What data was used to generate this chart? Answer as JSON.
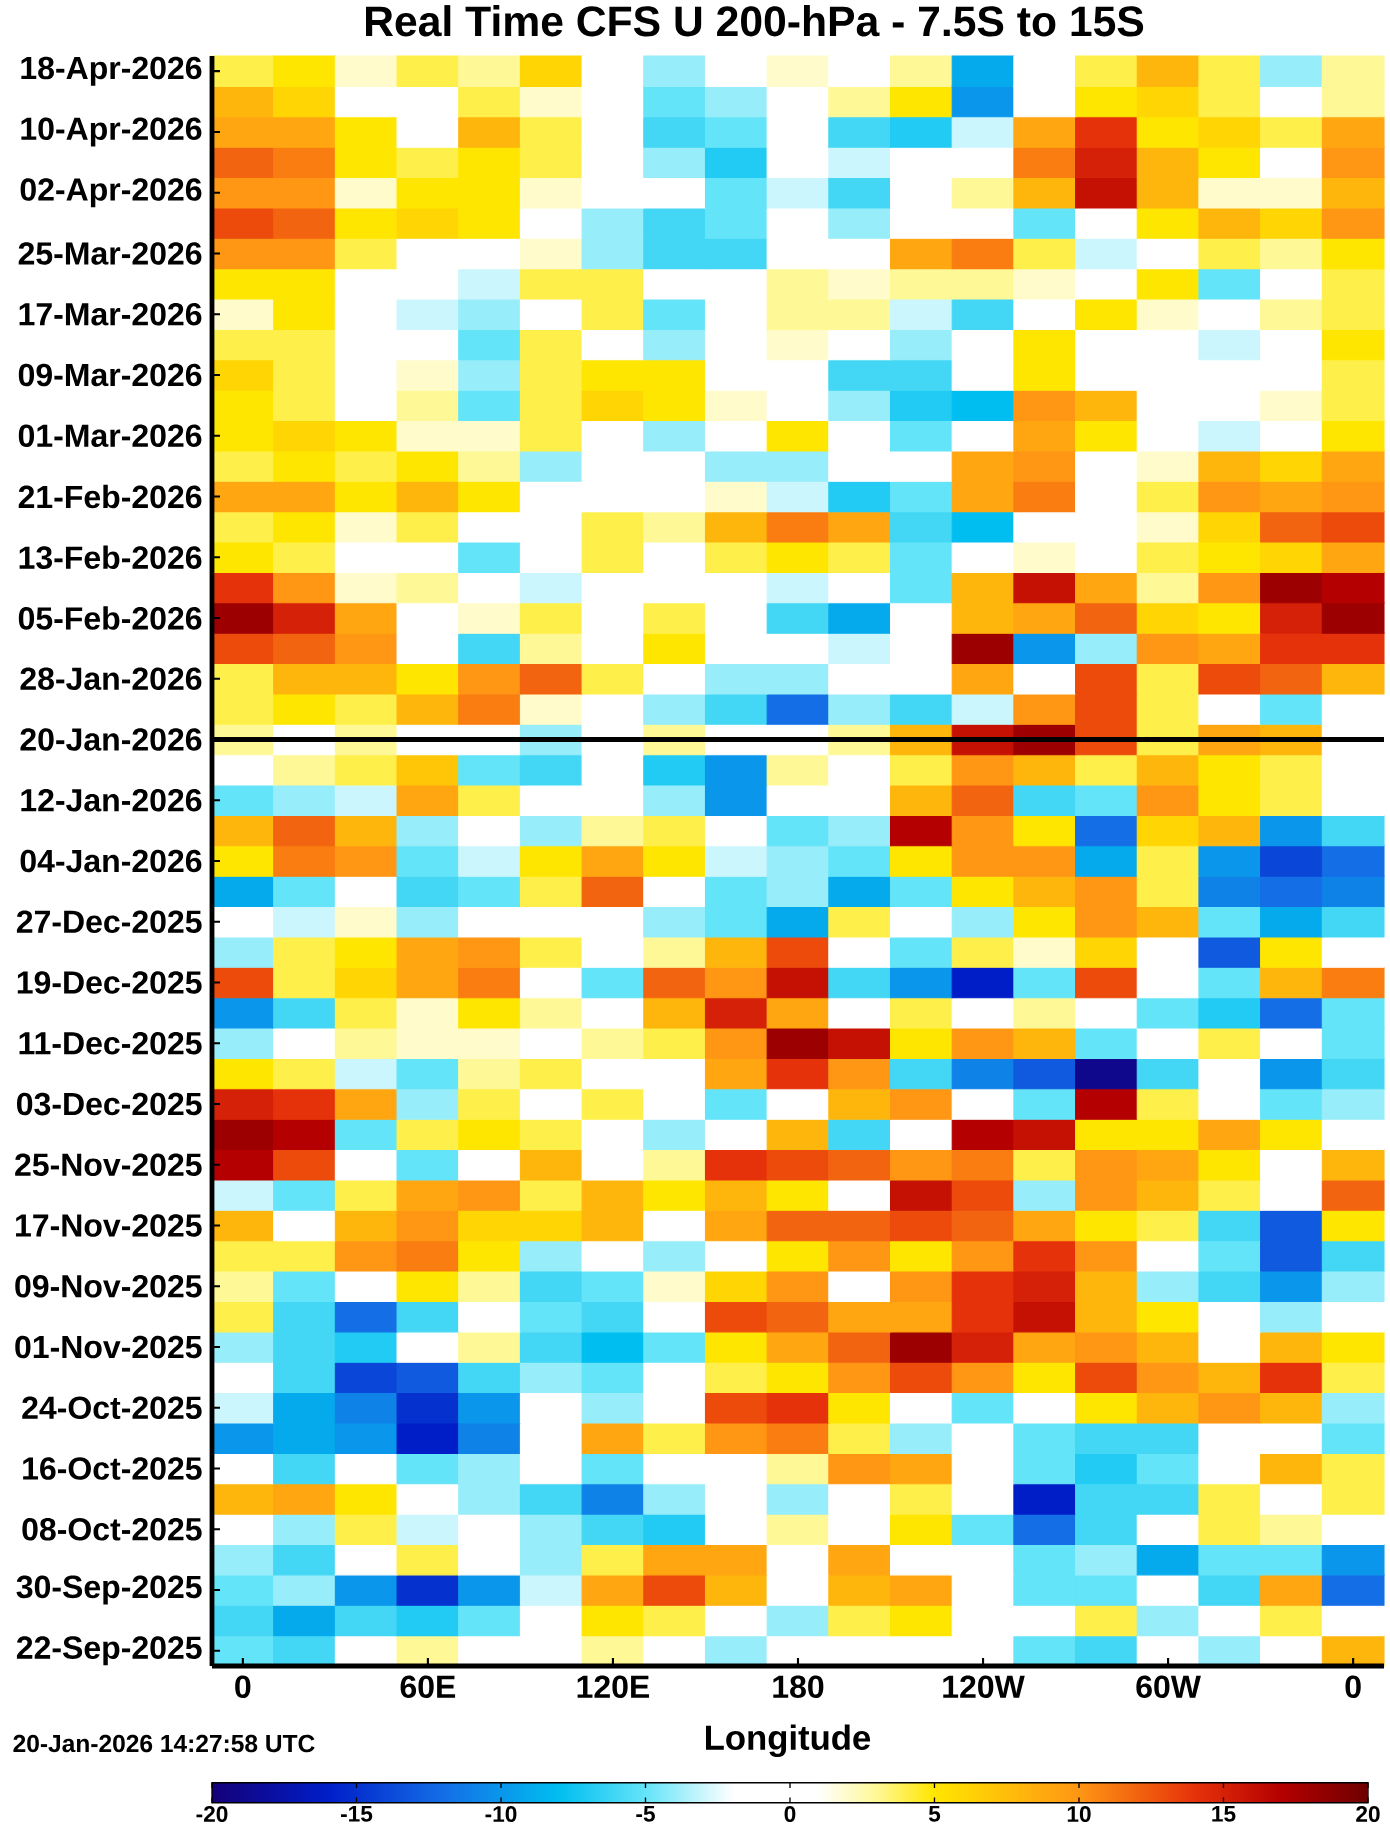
{
  "chart_data": {
    "type": "heatmap",
    "title": "Real Time CFS U 200-hPa - 7.5S to 15S",
    "xlabel": "Longitude",
    "categories": [
      "0",
      null,
      null,
      "60E",
      null,
      null,
      "120E",
      null,
      null,
      "180",
      null,
      null,
      "120W",
      null,
      null,
      "60W",
      null,
      null,
      "0"
    ],
    "y_categories": [
      "18-Apr-2026",
      null,
      "10-Apr-2026",
      null,
      "02-Apr-2026",
      null,
      "25-Mar-2026",
      null,
      "17-Mar-2026",
      null,
      "09-Mar-2026",
      null,
      "01-Mar-2026",
      null,
      "21-Feb-2026",
      null,
      "13-Feb-2026",
      null,
      "05-Feb-2026",
      null,
      "28-Jan-2026",
      null,
      "20-Jan-2026",
      null,
      "12-Jan-2026",
      null,
      "04-Jan-2026",
      null,
      "27-Dec-2025",
      null,
      "19-Dec-2025",
      null,
      "11-Dec-2025",
      null,
      "03-Dec-2025",
      null,
      "25-Nov-2025",
      null,
      "17-Nov-2025",
      null,
      "09-Nov-2025",
      null,
      "01-Nov-2025",
      null,
      "24-Oct-2025",
      null,
      "16-Oct-2025",
      null,
      "08-Oct-2025",
      null,
      "30-Sep-2025",
      null,
      "22-Sep-2025"
    ],
    "cells": [
      [
        4,
        5,
        2,
        4,
        3,
        6,
        0,
        -4,
        0,
        2,
        1,
        3,
        -9,
        0,
        4,
        8,
        4,
        -4,
        3
      ],
      [
        8,
        6,
        1,
        -1,
        4,
        2,
        0,
        -5,
        -4,
        0,
        3,
        5,
        -10,
        1,
        5,
        6,
        4,
        1,
        3
      ],
      [
        9,
        9,
        5,
        1,
        8,
        4,
        0,
        -6,
        -5,
        1,
        -6,
        -7,
        -3,
        9,
        14,
        5,
        6,
        4,
        9
      ],
      [
        12,
        11,
        5,
        4,
        5,
        4,
        1,
        -4,
        -7,
        1,
        -3,
        0,
        1,
        11,
        15,
        8,
        5,
        1,
        10
      ],
      [
        10,
        10,
        2,
        5,
        5,
        2,
        0,
        -1,
        -5,
        -3,
        -6,
        1,
        3,
        8,
        16,
        8,
        2,
        2,
        8
      ],
      [
        13,
        12,
        5,
        6,
        5,
        1,
        -4,
        -6,
        -5,
        0,
        -4,
        1,
        1,
        -5,
        1,
        5,
        8,
        6,
        10
      ],
      [
        10,
        10,
        4,
        1,
        1,
        2,
        -4,
        -6,
        -6,
        1,
        1,
        9,
        11,
        4,
        -3,
        1,
        4,
        3,
        5
      ],
      [
        5,
        5,
        1,
        0,
        -3,
        4,
        4,
        0,
        1,
        3,
        2,
        3,
        3,
        2,
        1,
        5,
        -5,
        1,
        4
      ],
      [
        2,
        5,
        1,
        -3,
        -4,
        0,
        4,
        -5,
        0,
        3,
        3,
        -3,
        -6,
        1,
        5,
        2,
        1,
        3,
        4
      ],
      [
        4,
        4,
        0,
        1,
        -5,
        4,
        1,
        -4,
        1,
        2,
        1,
        -4,
        0,
        5,
        -2,
        0,
        -3,
        1,
        5
      ],
      [
        6,
        4,
        1,
        2,
        -4,
        4,
        5,
        5,
        1,
        1,
        -6,
        -6,
        1,
        5,
        1,
        0,
        1,
        0,
        4
      ],
      [
        5,
        4,
        1,
        3,
        -5,
        4,
        6,
        5,
        2,
        1,
        -4,
        -7,
        -8,
        10,
        8,
        1,
        0,
        2,
        4
      ],
      [
        5,
        6,
        5,
        2,
        2,
        4,
        1,
        -4,
        1,
        5,
        1,
        -5,
        0,
        9,
        5,
        0,
        -3,
        1,
        5
      ],
      [
        4,
        5,
        4,
        5,
        3,
        -4,
        0,
        1,
        -4,
        -4,
        0,
        1,
        9,
        10,
        1,
        2,
        8,
        6,
        9
      ],
      [
        9,
        9,
        5,
        8,
        5,
        1,
        1,
        1,
        2,
        -3,
        -7,
        -5,
        9,
        11,
        1,
        4,
        10,
        9,
        10
      ],
      [
        4,
        5,
        2,
        4,
        0,
        1,
        4,
        3,
        8,
        11,
        9,
        -6,
        -8,
        1,
        0,
        2,
        6,
        12,
        13
      ],
      [
        5,
        4,
        1,
        1,
        -5,
        0,
        4,
        1,
        4,
        5,
        4,
        -5,
        1,
        2,
        1,
        4,
        5,
        6,
        9
      ],
      [
        14,
        10,
        2,
        3,
        1,
        -3,
        1,
        0,
        0,
        -3,
        1,
        -5,
        8,
        16,
        9,
        3,
        10,
        18,
        17
      ],
      [
        18,
        15,
        9,
        1,
        2,
        4,
        1,
        4,
        1,
        -6,
        -9,
        1,
        8,
        9,
        12,
        6,
        5,
        15,
        18
      ],
      [
        13,
        12,
        10,
        1,
        -6,
        3,
        1,
        5,
        0,
        1,
        -3,
        1,
        18,
        -10,
        -4,
        10,
        9,
        14,
        14
      ],
      [
        4,
        8,
        8,
        5,
        10,
        12,
        4,
        1,
        -4,
        -4,
        1,
        1,
        9,
        0,
        13,
        4,
        13,
        12,
        8
      ],
      [
        4,
        5,
        4,
        8,
        11,
        2,
        1,
        -4,
        -6,
        -12,
        -4,
        -6,
        -3,
        10,
        13,
        4,
        1,
        -5,
        1
      ],
      [
        3,
        1,
        3,
        1,
        0,
        -4,
        1,
        3,
        1,
        1,
        3,
        8,
        16,
        18,
        13,
        4,
        9,
        8,
        1
      ],
      [
        1,
        3,
        4,
        7,
        -5,
        -6,
        0,
        -7,
        -10,
        3,
        1,
        4,
        10,
        8,
        4,
        8,
        5,
        4,
        1
      ],
      [
        -5,
        -4,
        -3,
        9,
        4,
        1,
        1,
        -4,
        -10,
        1,
        1,
        8,
        12,
        -6,
        -5,
        10,
        5,
        4,
        1
      ],
      [
        8,
        12,
        8,
        -4,
        1,
        -4,
        3,
        4,
        1,
        -5,
        -4,
        17,
        10,
        5,
        -12,
        6,
        8,
        -10,
        -6
      ],
      [
        5,
        11,
        10,
        -5,
        -3,
        5,
        9,
        5,
        -3,
        -4,
        -5,
        5,
        10,
        10,
        -9,
        4,
        -10,
        -14,
        -12
      ],
      [
        -9,
        -5,
        1,
        -6,
        -5,
        4,
        12,
        1,
        -5,
        -4,
        -9,
        -5,
        5,
        8,
        10,
        4,
        -11,
        -12,
        -11
      ],
      [
        1,
        -3,
        2,
        -4,
        1,
        1,
        1,
        -4,
        -5,
        -9,
        4,
        1,
        -4,
        5,
        10,
        8,
        -5,
        -9,
        -6
      ],
      [
        -4,
        4,
        5,
        9,
        10,
        4,
        1,
        3,
        8,
        13,
        1,
        -5,
        4,
        2,
        6,
        1,
        -13,
        5,
        1
      ],
      [
        13,
        4,
        6,
        9,
        11,
        1,
        -5,
        12,
        10,
        16,
        -6,
        -10,
        -16,
        -5,
        13,
        1,
        -5,
        8,
        11
      ],
      [
        -10,
        -6,
        4,
        2,
        5,
        3,
        1,
        8,
        15,
        9,
        1,
        4,
        1,
        3,
        1,
        -5,
        -7,
        -12,
        -5
      ],
      [
        -4,
        1,
        3,
        2,
        2,
        1,
        3,
        4,
        10,
        18,
        16,
        5,
        10,
        8,
        -5,
        1,
        4,
        1,
        -5
      ],
      [
        5,
        4,
        -3,
        -5,
        3,
        4,
        1,
        0,
        9,
        14,
        10,
        -6,
        -11,
        -13,
        -19,
        -6,
        1,
        -10,
        -6
      ],
      [
        15,
        14,
        9,
        -4,
        4,
        1,
        4,
        1,
        -5,
        1,
        8,
        10,
        1,
        -5,
        17,
        4,
        1,
        -5,
        -4
      ],
      [
        18,
        17,
        -5,
        4,
        5,
        4,
        1,
        -4,
        1,
        8,
        -6,
        1,
        17,
        16,
        5,
        5,
        9,
        5,
        1
      ],
      [
        17,
        13,
        1,
        -5,
        1,
        8,
        1,
        3,
        14,
        13,
        12,
        10,
        11,
        4,
        10,
        9,
        5,
        1,
        8
      ],
      [
        -3,
        -5,
        4,
        9,
        10,
        4,
        8,
        5,
        8,
        5,
        1,
        16,
        13,
        -4,
        10,
        8,
        4,
        1,
        12
      ],
      [
        8,
        1,
        8,
        10,
        6,
        6,
        8,
        1,
        9,
        12,
        12,
        13,
        12,
        9,
        5,
        4,
        -6,
        -13,
        5
      ],
      [
        4,
        4,
        10,
        11,
        5,
        -4,
        1,
        -4,
        1,
        5,
        10,
        5,
        10,
        14,
        10,
        1,
        -5,
        -13,
        -6
      ],
      [
        3,
        -5,
        1,
        5,
        3,
        -6,
        -5,
        2,
        6,
        10,
        1,
        10,
        14,
        15,
        8,
        -4,
        -6,
        -10,
        -4
      ],
      [
        4,
        -6,
        -12,
        -6,
        1,
        -5,
        -6,
        1,
        13,
        12,
        9,
        9,
        14,
        16,
        8,
        5,
        1,
        -4,
        1
      ],
      [
        -4,
        -6,
        -7,
        1,
        3,
        -6,
        -8,
        -5,
        5,
        9,
        12,
        18,
        15,
        9,
        10,
        8,
        1,
        8,
        5
      ],
      [
        1,
        -6,
        -14,
        -13,
        -6,
        -4,
        -5,
        1,
        4,
        5,
        10,
        13,
        10,
        5,
        13,
        10,
        8,
        14,
        4
      ],
      [
        -3,
        -9,
        -11,
        -15,
        -10,
        1,
        -4,
        1,
        13,
        14,
        5,
        1,
        -5,
        1,
        5,
        8,
        10,
        8,
        -4
      ],
      [
        -10,
        -9,
        -10,
        -16,
        -11,
        1,
        9,
        4,
        10,
        11,
        4,
        -4,
        1,
        -5,
        -6,
        -6,
        1,
        1,
        -5
      ],
      [
        1,
        -6,
        1,
        -5,
        -4,
        1,
        -5,
        0,
        1,
        3,
        10,
        9,
        1,
        -5,
        -7,
        -5,
        1,
        8,
        4
      ],
      [
        8,
        9,
        5,
        0,
        -4,
        -6,
        -11,
        -4,
        1,
        -4,
        1,
        4,
        1,
        -16,
        -6,
        -6,
        4,
        1,
        4
      ],
      [
        1,
        -4,
        4,
        -3,
        1,
        -4,
        -6,
        -7,
        1,
        3,
        1,
        5,
        -5,
        -12,
        -6,
        1,
        4,
        3,
        1
      ],
      [
        -4,
        -6,
        1,
        4,
        1,
        -4,
        4,
        9,
        9,
        1,
        9,
        1,
        1,
        -5,
        -4,
        -9,
        -5,
        -5,
        -10
      ],
      [
        -5,
        -4,
        -10,
        -15,
        -10,
        -3,
        9,
        13,
        8,
        1,
        8,
        9,
        1,
        -5,
        -5,
        1,
        -6,
        9,
        -12
      ],
      [
        -6,
        -9,
        -6,
        -7,
        -5,
        0,
        5,
        4,
        1,
        -4,
        4,
        5,
        1,
        0,
        4,
        -4,
        1,
        4,
        1
      ],
      [
        -5,
        -6,
        1,
        3,
        1,
        1,
        3,
        1,
        -4,
        1,
        1,
        1,
        1,
        -5,
        -6,
        1,
        -4,
        1,
        8
      ]
    ],
    "clim": [
      -20,
      20
    ],
    "cticks": [
      -20,
      -15,
      -10,
      -5,
      0,
      5,
      10,
      15,
      20
    ],
    "ref_lines": [
      {
        "axis": "y",
        "value": "20-Jan-2026",
        "color": "#000000"
      }
    ],
    "annotations": [
      "20-Jan-2026 14:27:58 UTC"
    ]
  }
}
